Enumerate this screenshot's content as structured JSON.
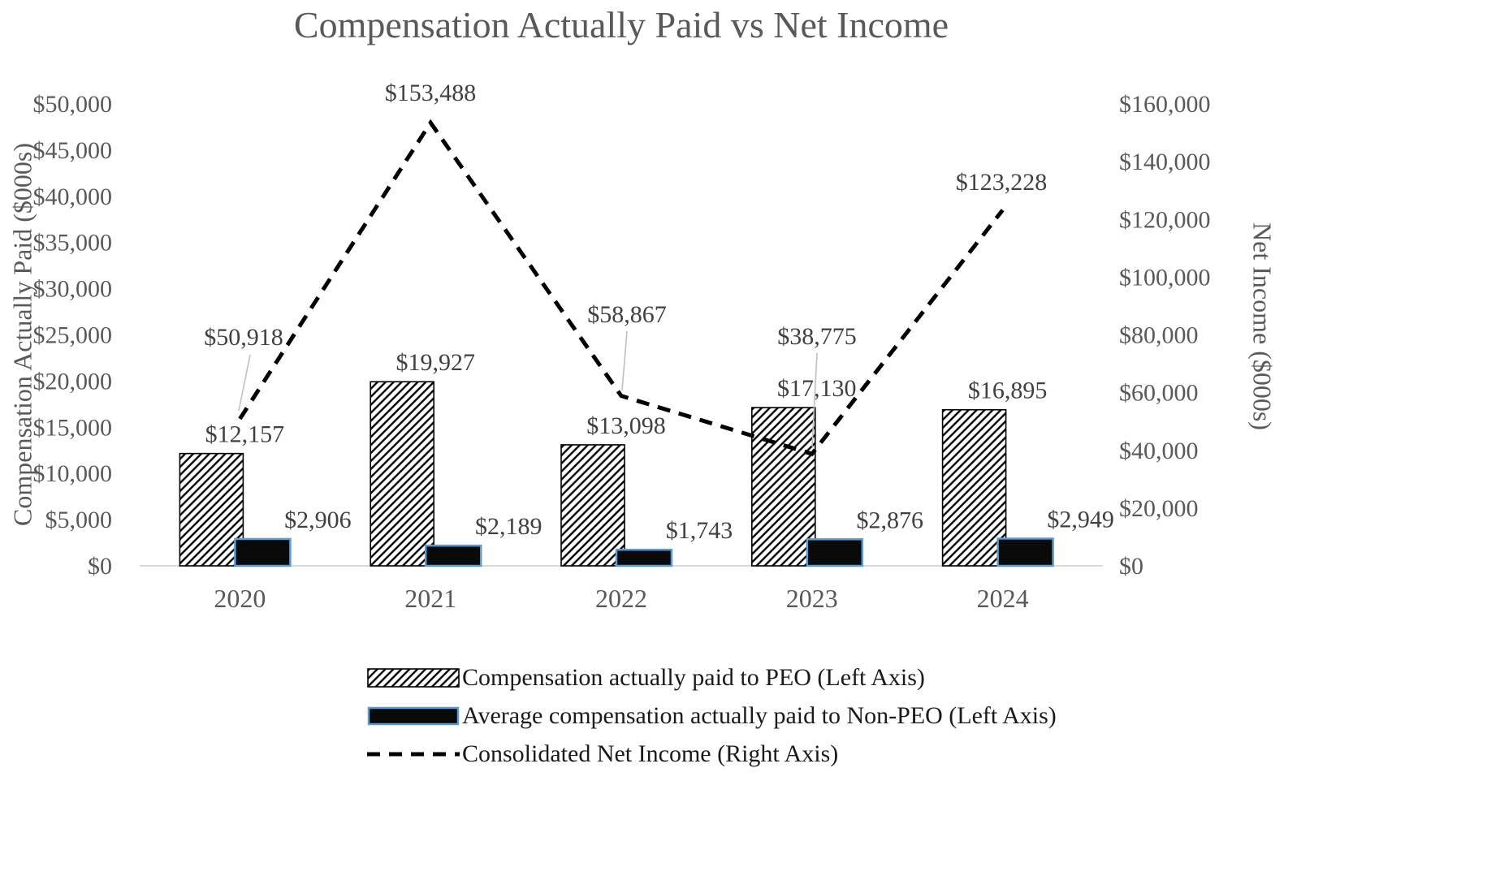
{
  "chart_data": {
    "type": "combo",
    "title": "Compensation Actually Paid vs Net Income",
    "categories": [
      "2020",
      "2021",
      "2022",
      "2023",
      "2024"
    ],
    "series": [
      {
        "name": "Compensation actually paid to PEO (Left Axis)",
        "type": "bar",
        "axis": "left",
        "style": "hatched-diagonal",
        "values": [
          12157,
          19927,
          13098,
          17130,
          16895
        ],
        "labels": [
          "$12,157",
          "$19,927",
          "$13,098",
          "$17,130",
          "$16,895"
        ]
      },
      {
        "name": "Average compensation actually paid to Non-PEO (Left Axis)",
        "type": "bar",
        "axis": "left",
        "style": "solid-black-blue-border",
        "values": [
          2906,
          2189,
          1743,
          2876,
          2949
        ],
        "labels": [
          "$2,906",
          "$2,189",
          "$1,743",
          "$2,876",
          "$2,949"
        ]
      },
      {
        "name": "Consolidated Net Income (Right Axis)",
        "type": "line",
        "axis": "right",
        "style": "dashed-black",
        "values": [
          50918,
          153488,
          58867,
          38775,
          123228
        ],
        "labels": [
          "$50,918",
          "$153,488",
          "$58,867",
          "$38,775",
          "$123,228"
        ]
      }
    ],
    "left_axis": {
      "title": "Compensation Actually Paid ($000s)",
      "min": 0,
      "max": 50000,
      "step": 5000,
      "tick_labels": [
        "$0",
        "$5,000",
        "$10,000",
        "$15,000",
        "$20,000",
        "$25,000",
        "$30,000",
        "$35,000",
        "$40,000",
        "$45,000",
        "$50,000"
      ]
    },
    "right_axis": {
      "title": "Net Income ($000s)",
      "min": 0,
      "max": 160000,
      "step": 20000,
      "tick_labels": [
        "$0",
        "$20,000",
        "$40,000",
        "$60,000",
        "$80,000",
        "$100,000",
        "$120,000",
        "$140,000",
        "$160,000"
      ]
    },
    "legend_position": "bottom",
    "grid": false
  },
  "colors": {
    "title_text": "#595959",
    "axis_text": "#595959",
    "label_text": "#404040",
    "bar_border": "#000000",
    "nonpeo_fill": "#0a0a0a",
    "nonpeo_border": "#5B9BD5",
    "line": "#000000",
    "leader": "#BFBFBF",
    "axis_line": "#D9D9D9"
  }
}
